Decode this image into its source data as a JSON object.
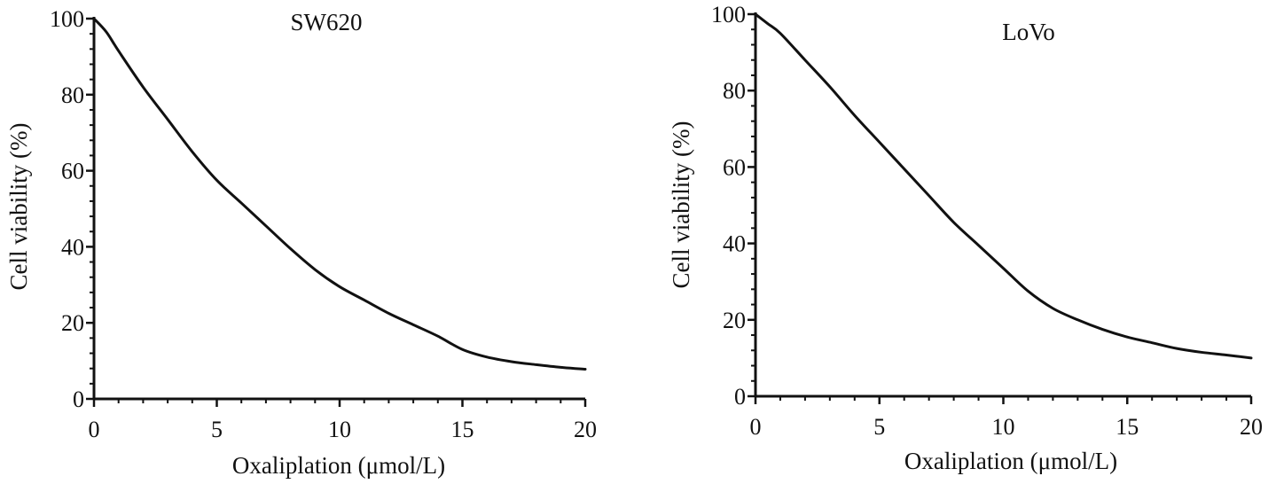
{
  "chart_data": [
    {
      "type": "line",
      "title": "SW620",
      "xlabel": "Oxaliplation (μmol/L)",
      "ylabel": "Cell viability (%)",
      "xlim": [
        0,
        20
      ],
      "ylim": [
        0,
        100
      ],
      "xticks": [
        0,
        5,
        10,
        15,
        20
      ],
      "yticks": [
        0,
        20,
        40,
        60,
        80,
        100
      ],
      "xtick_labels": [
        "0",
        "5",
        "10",
        "15",
        "20"
      ],
      "ytick_labels": [
        "0",
        "20",
        "40",
        "60",
        "80",
        "100"
      ],
      "grid": false,
      "line_color": "#111111",
      "series": [
        {
          "x": [
            0,
            0.5,
            1,
            2,
            3,
            4,
            5,
            6,
            7,
            8,
            9,
            10,
            11,
            12,
            13,
            14,
            15,
            16,
            17,
            18,
            19,
            20
          ],
          "y": [
            100,
            96.5,
            91.5,
            82,
            73.5,
            65,
            57.5,
            51.5,
            45.5,
            39.5,
            34,
            29.5,
            26,
            22.5,
            19.5,
            16.5,
            13,
            11,
            9.8,
            9.0,
            8.3,
            7.8
          ]
        }
      ]
    },
    {
      "type": "line",
      "title": "LoVo",
      "xlabel": "Oxaliplation (μmol/L)",
      "ylabel": "Cell viability (%)",
      "xlim": [
        0,
        20
      ],
      "ylim": [
        0,
        100
      ],
      "xticks": [
        0,
        5,
        10,
        15,
        20
      ],
      "yticks": [
        0,
        20,
        40,
        60,
        80,
        100
      ],
      "xtick_labels": [
        "0",
        "5",
        "10",
        "15",
        "20"
      ],
      "ytick_labels": [
        "0",
        "20",
        "40",
        "60",
        "80",
        "100"
      ],
      "grid": false,
      "line_color": "#111111",
      "series": [
        {
          "x": [
            0,
            0.5,
            1,
            2,
            3,
            4,
            5,
            6,
            7,
            8,
            9,
            10,
            11,
            12,
            13,
            14,
            15,
            16,
            17,
            18,
            19,
            20
          ],
          "y": [
            100,
            97.5,
            95,
            88,
            81,
            73.5,
            66.5,
            59.5,
            52.5,
            45.5,
            39.5,
            33.5,
            27.5,
            23,
            20,
            17.5,
            15.5,
            14,
            12.5,
            11.5,
            10.8,
            10
          ]
        }
      ]
    }
  ]
}
